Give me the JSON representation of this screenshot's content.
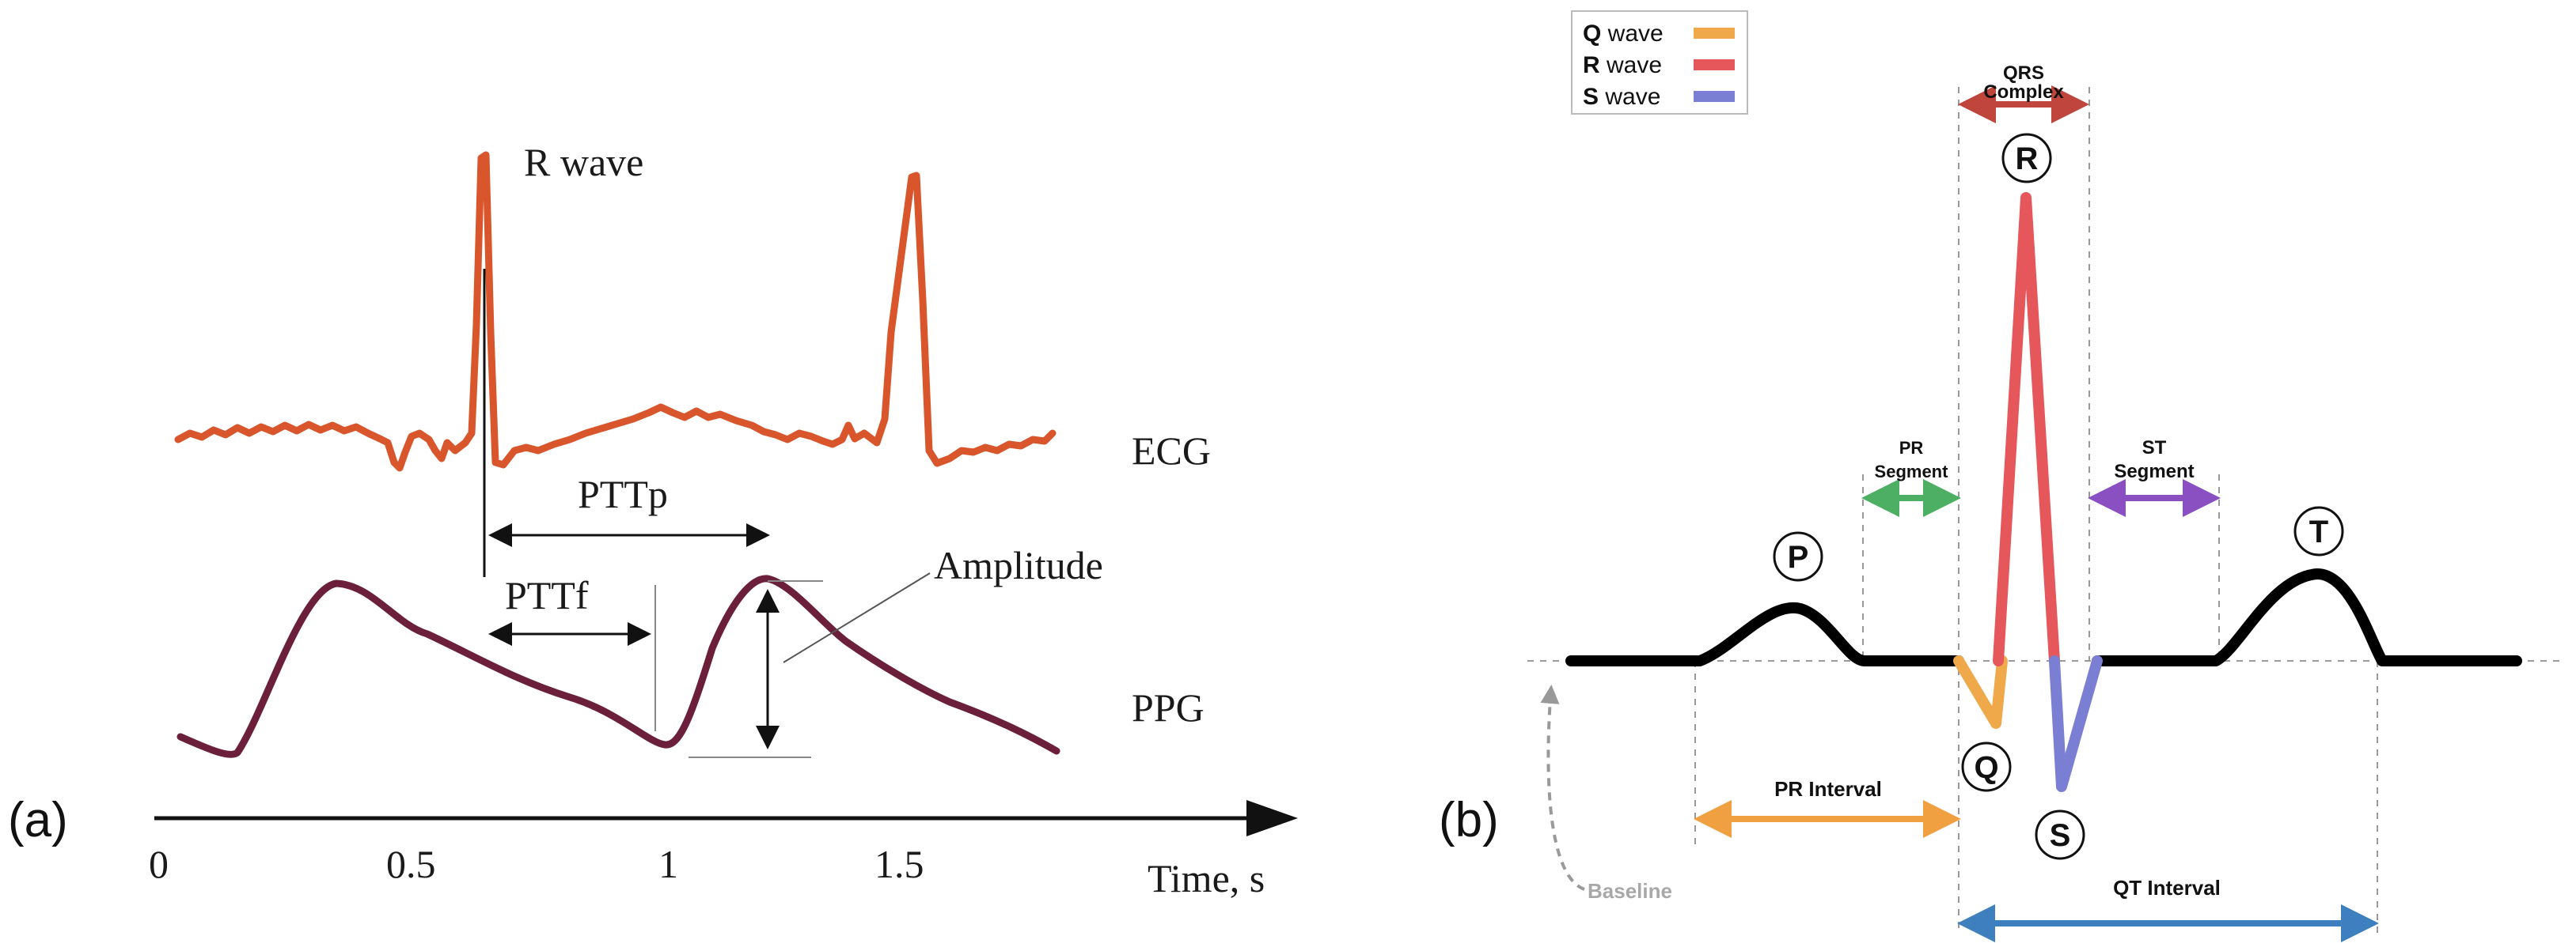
{
  "panel_a": {
    "tag": "(a)",
    "labels": {
      "r_wave": "R wave",
      "ecg": "ECG",
      "ptt_p": "PTTp",
      "ptt_f": "PTTf",
      "amplitude": "Amplitude",
      "ppg": "PPG"
    },
    "axis": {
      "ticks": [
        "0",
        "0.5",
        "1",
        "1.5"
      ],
      "label": "Time, s"
    },
    "colors": {
      "ecg": "#d9552b",
      "ppg": "#6b1f3b",
      "ink": "#1a1a1a"
    }
  },
  "panel_b": {
    "tag": "(b)",
    "legend": [
      {
        "letter": "Q",
        "text": " wave",
        "color": "#f0a94a"
      },
      {
        "letter": "R",
        "text": " wave",
        "color": "#e5575a"
      },
      {
        "letter": "S",
        "text": " wave",
        "color": "#7b7fd3"
      }
    ],
    "qrs": {
      "line1": "QRS",
      "line2": "Complex"
    },
    "pr_segment": {
      "line1": "PR",
      "line2": "Segment"
    },
    "st_segment": {
      "line1": "ST",
      "line2": "Segment"
    },
    "waves": {
      "p": "P",
      "q": "Q",
      "r": "R",
      "s": "S",
      "t": "T"
    },
    "pr_interval": "PR Interval",
    "qt_interval": "QT Interval",
    "baseline": "Baseline",
    "colors": {
      "trace": "#000000",
      "q": "#f0a94a",
      "r": "#e5575a",
      "s": "#7b7fd3",
      "qrs_arrow": "#c0453c",
      "segment_green": "#4caf64",
      "segment_purple": "#8a4fc0",
      "pr_interval": "#f0a040",
      "qt_interval": "#3d7fbf",
      "guide": "#999999"
    }
  }
}
